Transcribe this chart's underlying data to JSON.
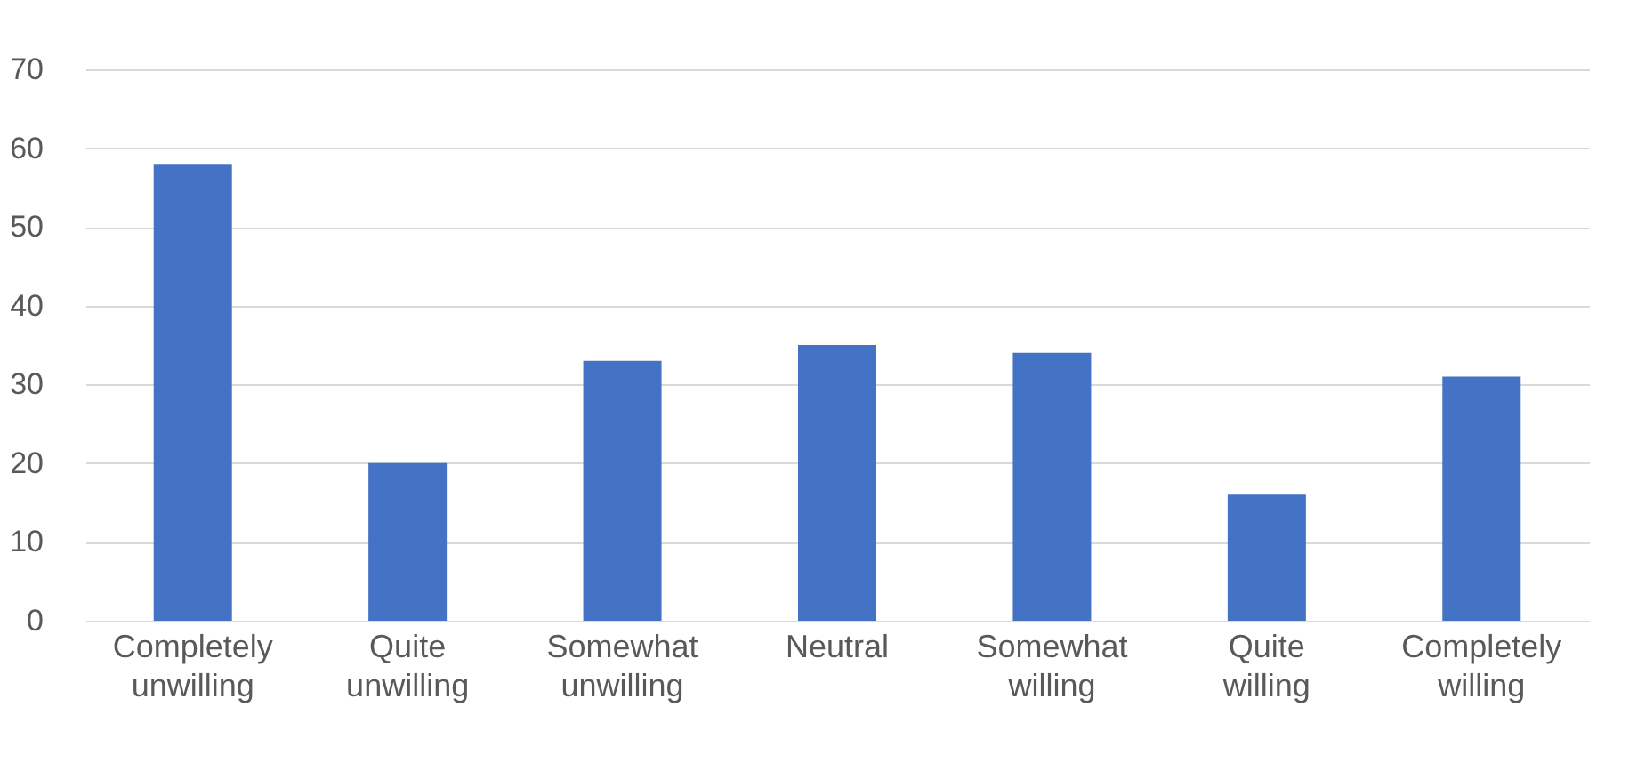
{
  "chart_data": {
    "type": "bar",
    "categories": [
      "Completely unwilling",
      "Quite unwilling",
      "Somewhat unwilling",
      "Neutral",
      "Somewhat willing",
      "Quite willing",
      "Completely willing"
    ],
    "values": [
      58,
      20,
      33,
      35,
      34,
      16,
      31
    ],
    "color": "#4472c4",
    "ylim": [
      0,
      70
    ],
    "yticks": [
      0,
      10,
      20,
      30,
      40,
      50,
      60,
      70
    ],
    "grid": "y"
  }
}
